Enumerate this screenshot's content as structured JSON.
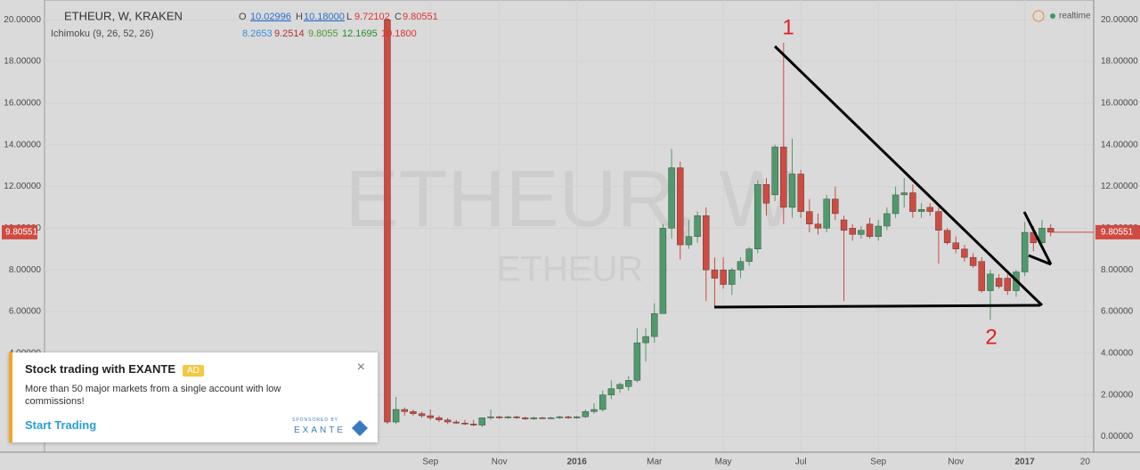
{
  "header": {
    "symbol": "ETHEUR, W, KRAKEN",
    "o_label": "O",
    "o": "10.02996",
    "h_label": "H",
    "h": "10.18000",
    "l_label": "L",
    "l": "9.72102",
    "c_label": "C",
    "c": "9.80551",
    "indicator": "Ichimoku (9, 26, 52, 26)",
    "indicator_values": [
      "8.2653",
      "9.2514",
      "9.8055",
      "12.1695",
      "10.1800"
    ],
    "status": "realtime",
    "watermark": "ETHEUR, W",
    "watermark_sub": "ETHEUR"
  },
  "ad": {
    "title": "Stock trading with EXANTE",
    "badge": "AD",
    "body": "More than 50 major markets from a single account with low commissions!",
    "cta": "Start Trading",
    "sponsor": "SPONSORED BY",
    "brand": "EXANTE",
    "close": "×"
  },
  "chart_data": {
    "type": "candlestick",
    "up_color": "#4f9a6c",
    "down_color": "#cf4a40",
    "ylim": [
      -0.75,
      20.95
    ],
    "yticks": [
      {
        "value": 0,
        "label": "0.00000"
      },
      {
        "value": 2,
        "label": "2.00000"
      },
      {
        "value": 4,
        "label": "4.00000"
      },
      {
        "value": 6,
        "label": "6.00000"
      },
      {
        "value": 8,
        "label": "8.00000"
      },
      {
        "value": 10,
        "label": "10.00000"
      },
      {
        "value": 12,
        "label": "12.00000"
      },
      {
        "value": 14,
        "label": "14.00000"
      },
      {
        "value": 16,
        "label": "16.00000"
      },
      {
        "value": 18,
        "label": "18.00000"
      },
      {
        "value": 20,
        "label": "20.00000"
      }
    ],
    "xlim": [
      -39.8,
      82
    ],
    "xticks": [
      {
        "value": 5,
        "label": "Sep"
      },
      {
        "value": 13,
        "label": "Nov"
      },
      {
        "value": 22,
        "label": "2016"
      },
      {
        "value": 31,
        "label": "Mar"
      },
      {
        "value": 39,
        "label": "May"
      },
      {
        "value": 48,
        "label": "Jul"
      },
      {
        "value": 57,
        "label": "Sep"
      },
      {
        "value": 66,
        "label": "Nov"
      },
      {
        "value": 74,
        "label": "2017"
      },
      {
        "value": 81,
        "label": "20"
      }
    ],
    "annotations": [
      "1",
      "2"
    ],
    "open": [
      20,
      0.7,
      1.3,
      1.2,
      1.1,
      1.0,
      0.9,
      0.8,
      0.7,
      0.65,
      0.6,
      0.55,
      0.9,
      0.95,
      0.9,
      0.95,
      0.9,
      0.85,
      0.9,
      0.88,
      0.9,
      0.95,
      0.9,
      0.95,
      1.2,
      1.3,
      2.0,
      2.3,
      2.4,
      2.7,
      4.5,
      4.8,
      5.9,
      10.0,
      12.9,
      9.2,
      9.6,
      10.6,
      8.0,
      8.0,
      7.3,
      8.0,
      8.4,
      9.0,
      12.1,
      11.6,
      13.9,
      11.0,
      12.6,
      10.8,
      10.2,
      10.0,
      11.4,
      10.4,
      10.0,
      9.7,
      10.2,
      9.6,
      10.1,
      10.7,
      11.6,
      11.7,
      10.8,
      11.0,
      10.8,
      9.9,
      9.3,
      9.0,
      8.6,
      8.4,
      7.0,
      7.6,
      7.6,
      7.0,
      7.9,
      9.8,
      9.3,
      10.0
    ],
    "high": [
      20,
      1.9,
      1.4,
      1.3,
      1.2,
      1.3,
      1.0,
      0.9,
      0.8,
      0.8,
      0.8,
      0.9,
      1.3,
      1.0,
      1.0,
      1.0,
      0.95,
      0.95,
      0.95,
      0.95,
      1.0,
      1.0,
      1.0,
      1.3,
      1.6,
      2.2,
      2.7,
      2.6,
      2.9,
      5.2,
      5.2,
      6.4,
      10.2,
      13.8,
      13.2,
      10.4,
      10.8,
      11.0,
      8.6,
      8.6,
      8.1,
      8.6,
      9.1,
      12.3,
      12.4,
      14.0,
      18.9,
      14.3,
      12.8,
      11.4,
      10.7,
      11.6,
      12.0,
      10.6,
      10.2,
      10.1,
      10.5,
      10.4,
      11.0,
      12.0,
      12.4,
      12.1,
      11.2,
      11.2,
      11.0,
      10.0,
      9.6,
      9.2,
      8.8,
      8.6,
      8.0,
      7.8,
      7.8,
      8.0,
      10.3,
      10.1,
      10.4,
      10.2
    ],
    "low": [
      0.6,
      0.6,
      1.0,
      1.0,
      0.9,
      0.8,
      0.7,
      0.6,
      0.6,
      0.55,
      0.5,
      0.45,
      0.8,
      0.85,
      0.85,
      0.85,
      0.8,
      0.8,
      0.85,
      0.85,
      0.85,
      0.85,
      0.85,
      0.9,
      1.1,
      1.2,
      1.8,
      2.1,
      2.2,
      2.6,
      3.6,
      4.5,
      5.9,
      9.5,
      8.5,
      9.0,
      9.3,
      6.5,
      6.2,
      7.1,
      6.8,
      7.6,
      8.2,
      8.8,
      10.6,
      11.3,
      10.2,
      10.5,
      10.5,
      9.8,
      9.7,
      9.8,
      10.4,
      6.5,
      9.4,
      9.5,
      9.5,
      9.4,
      9.9,
      10.5,
      11.0,
      10.5,
      10.5,
      10.6,
      8.3,
      9.2,
      8.8,
      8.4,
      8.1,
      6.9,
      5.6,
      7.1,
      6.8,
      6.7,
      7.7,
      8.9,
      9.2,
      9.6
    ],
    "close": [
      0.7,
      1.3,
      1.2,
      1.1,
      1.0,
      0.9,
      0.8,
      0.7,
      0.65,
      0.6,
      0.55,
      0.9,
      0.95,
      0.9,
      0.95,
      0.9,
      0.85,
      0.9,
      0.88,
      0.9,
      0.95,
      0.9,
      0.95,
      1.2,
      1.3,
      2.0,
      2.3,
      2.5,
      2.7,
      4.5,
      4.8,
      5.9,
      10.0,
      12.9,
      9.2,
      9.6,
      10.6,
      8.0,
      7.6,
      7.3,
      8.0,
      8.4,
      9.0,
      12.1,
      11.2,
      13.9,
      11.0,
      12.6,
      10.8,
      10.2,
      10.0,
      11.4,
      10.7,
      9.9,
      9.7,
      9.9,
      9.6,
      10.1,
      10.7,
      11.6,
      11.7,
      10.8,
      10.9,
      10.8,
      9.9,
      9.3,
      9.0,
      8.6,
      8.2,
      7.0,
      7.8,
      7.2,
      7.0,
      7.9,
      9.8,
      9.3,
      10.0,
      9.80551
    ]
  }
}
